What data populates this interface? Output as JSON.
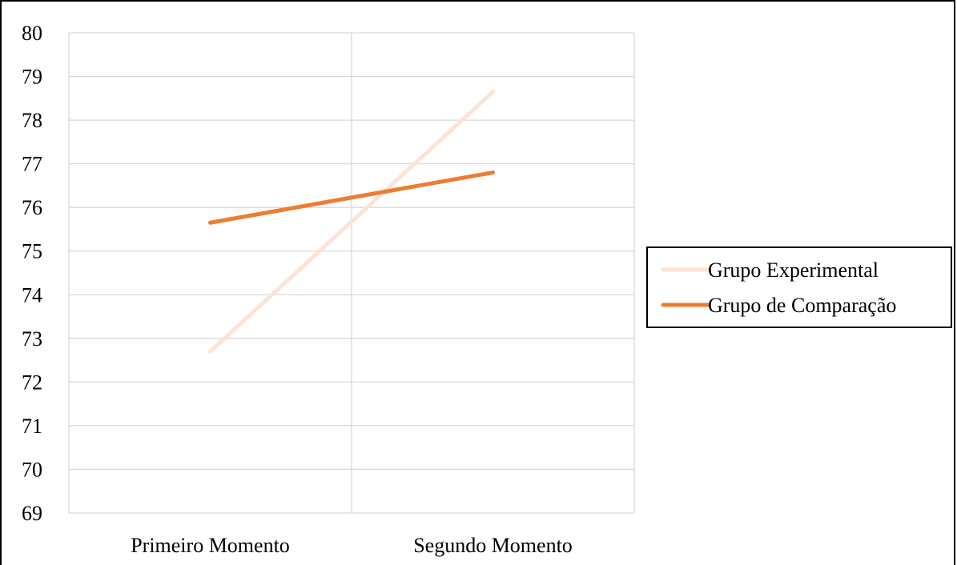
{
  "chart_data": {
    "type": "line",
    "title": "",
    "xlabel": "",
    "ylabel": "",
    "categories": [
      "Primeiro Momento",
      "Segundo Momento"
    ],
    "ylim": [
      69,
      80
    ],
    "yticks": [
      "69",
      "70",
      "71",
      "72",
      "73",
      "74",
      "75",
      "76",
      "77",
      "78",
      "79",
      "80"
    ],
    "grid": "horizontal and vertical",
    "legend_position": "right",
    "series": [
      {
        "name": "Grupo Experimental",
        "values": [
          72.7,
          78.65
        ],
        "color": "#fbe3d6"
      },
      {
        "name": "Grupo de Comparação",
        "values": [
          75.65,
          76.8
        ],
        "color": "#ed7d31"
      }
    ]
  }
}
